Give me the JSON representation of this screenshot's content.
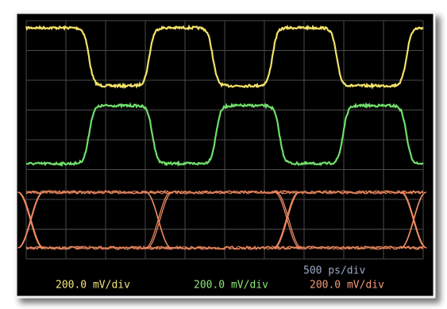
{
  "display": {
    "timebase": "500 ps/div",
    "channels": [
      {
        "scale": "200.0 mV/div"
      },
      {
        "scale": "200.0 mV/div"
      },
      {
        "scale": "200.0 mV/div"
      }
    ]
  }
}
